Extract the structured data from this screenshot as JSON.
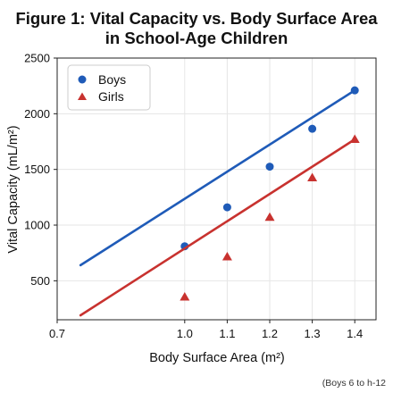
{
  "chart_data": {
    "type": "line",
    "title_lines": [
      "Figure 1: Vital Capacity vs. Body Surface Area",
      "in School-Age Children"
    ],
    "xlabel": "Body Surface Area (m²)",
    "ylabel": "Vital Capacity (mL/m²)",
    "xlim": [
      0.7,
      1.45
    ],
    "ylim": [
      150,
      2500
    ],
    "x_ticks": [
      0.7,
      1.0,
      1.1,
      1.2,
      1.3,
      1.4
    ],
    "x_tick_labels": [
      "0.7",
      "1.0",
      "1.1",
      "1.2",
      "1.3",
      "1.4"
    ],
    "y_ticks": [
      500,
      1000,
      1500,
      2000,
      2500
    ],
    "y_tick_labels": [
      "500",
      "1000",
      "1500",
      "2000",
      "2500"
    ],
    "grid": true,
    "legend_position": "top-left",
    "series": [
      {
        "name": "Boys",
        "marker": "circle",
        "color": "#1f5bb8",
        "x": [
          1.0,
          1.1,
          1.2,
          1.3,
          1.4
        ],
        "y": [
          810,
          1160,
          1525,
          1865,
          2210
        ],
        "fit_line": {
          "x": [
            0.755,
            1.4
          ],
          "y": [
            640,
            2210
          ]
        }
      },
      {
        "name": "Girls",
        "marker": "triangle",
        "color": "#c8322f",
        "x": [
          1.0,
          1.1,
          1.2,
          1.3,
          1.4
        ],
        "y": [
          355,
          715,
          1070,
          1425,
          1770
        ],
        "fit_line": {
          "x": [
            0.755,
            1.4
          ],
          "y": [
            190,
            1770
          ]
        }
      }
    ],
    "footnote": "(Boys 6 to h-12"
  }
}
